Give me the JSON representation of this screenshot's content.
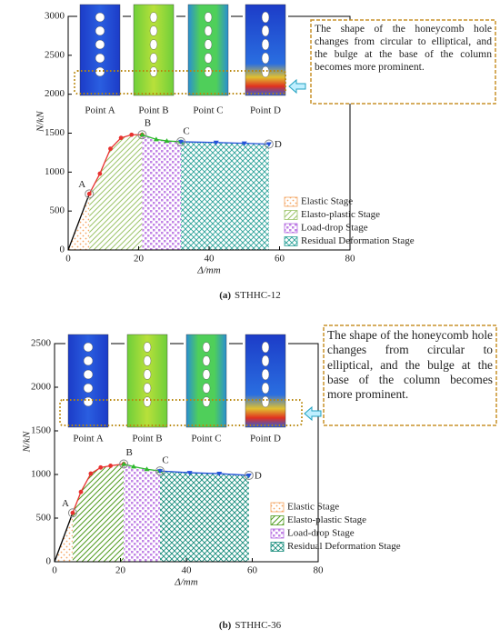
{
  "chart_data": [
    {
      "type": "line",
      "xlabel": "Δ/mm",
      "ylabel": "N/kN",
      "xlim": [
        0,
        80
      ],
      "ylim": [
        0,
        3000
      ],
      "xticks": [
        0,
        20,
        40,
        60,
        80
      ],
      "yticks": [
        0,
        500,
        1000,
        1500,
        2000,
        2500,
        3000
      ],
      "series": [
        {
          "name": "Elastic Stage",
          "color": "#000000",
          "fill": "#f4a460",
          "marker": "none",
          "x": [
            0,
            6
          ],
          "values": [
            0,
            720
          ]
        },
        {
          "name": "Elasto-plastic Stage",
          "color": "#e8312f",
          "fill": "#9cc46a",
          "marker": "circle",
          "x": [
            6,
            9,
            12,
            15,
            18,
            21
          ],
          "values": [
            720,
            980,
            1300,
            1440,
            1480,
            1480
          ]
        },
        {
          "name": "Load-drop Stage",
          "color": "#2eb82e",
          "fill": "#b366e0",
          "marker": "triangle-up",
          "x": [
            21,
            25,
            28,
            32
          ],
          "values": [
            1480,
            1420,
            1400,
            1390
          ]
        },
        {
          "name": "Residual Deformation Stage",
          "color": "#2553d9",
          "fill": "#2aa198",
          "marker": "triangle-down",
          "x": [
            32,
            42,
            50,
            57
          ],
          "values": [
            1390,
            1380,
            1370,
            1360
          ]
        }
      ],
      "annotations": [
        {
          "text": "A",
          "x": 6,
          "y": 720
        },
        {
          "text": "B",
          "x": 21,
          "y": 1480
        },
        {
          "text": "C",
          "x": 32,
          "y": 1390
        },
        {
          "text": "D",
          "x": 57,
          "y": 1360
        }
      ],
      "panels": [
        "Point A",
        "Point B",
        "Point C",
        "Point D"
      ],
      "note": "The shape of the honeycomb hole changes from circular to elliptical, and the bulge at the base of the column becomes more prominent.",
      "caption": {
        "label": "(a)",
        "text": "STHHC-12"
      }
    },
    {
      "type": "line",
      "xlabel": "Δ/mm",
      "ylabel": "N/kN",
      "xlim": [
        0,
        80
      ],
      "ylim": [
        0,
        2500
      ],
      "xticks": [
        0,
        20,
        40,
        60,
        80
      ],
      "yticks": [
        0,
        500,
        1000,
        1500,
        2000,
        2500
      ],
      "series": [
        {
          "name": "Elastic Stage",
          "color": "#000000",
          "fill": "#f4a460",
          "marker": "none",
          "x": [
            0,
            5.5
          ],
          "values": [
            0,
            560
          ]
        },
        {
          "name": "Elasto-plastic Stage",
          "color": "#e8312f",
          "fill": "#4f9a1e",
          "marker": "circle",
          "x": [
            5.5,
            8,
            11,
            14,
            17,
            21
          ],
          "values": [
            560,
            800,
            1010,
            1080,
            1100,
            1120
          ]
        },
        {
          "name": "Load-drop Stage",
          "color": "#2eb82e",
          "fill": "#b366e0",
          "marker": "triangle-up",
          "x": [
            21,
            24,
            28,
            32
          ],
          "values": [
            1120,
            1090,
            1060,
            1040
          ]
        },
        {
          "name": "Residual Deformation Stage",
          "color": "#2553d9",
          "fill": "#138a7a",
          "marker": "triangle-down",
          "x": [
            32,
            41,
            50,
            59
          ],
          "values": [
            1040,
            1020,
            1010,
            990
          ]
        }
      ],
      "annotations": [
        {
          "text": "A",
          "x": 5.5,
          "y": 560
        },
        {
          "text": "B",
          "x": 21,
          "y": 1120
        },
        {
          "text": "C",
          "x": 32,
          "y": 1040
        },
        {
          "text": "D",
          "x": 59,
          "y": 990
        }
      ],
      "panels": [
        "Point A",
        "Point B",
        "Point C",
        "Point D"
      ],
      "note": "The shape of the honeycomb hole changes from circular to elliptical, and the bulge at the base of the column becomes more prominent.",
      "caption": {
        "label": "(b)",
        "text": "STHHC-36"
      }
    }
  ]
}
